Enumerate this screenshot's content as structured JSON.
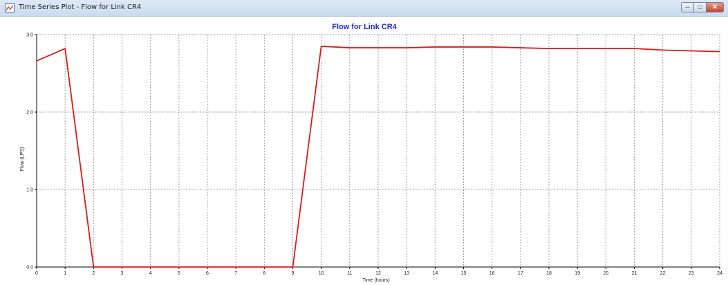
{
  "window": {
    "title": "Time Series Plot - Flow for Link CR4",
    "icon": "chart-icon",
    "controls": {
      "minimize_icon": "minimize-icon",
      "maximize_icon": "maximize-icon",
      "close_icon": "close-icon"
    }
  },
  "colors": {
    "title": "#1f2ad6",
    "series": "#e01818",
    "grid": "#a0a0a0"
  },
  "chart_data": {
    "type": "line",
    "title": "Flow for Link CR4",
    "xlabel": "Time (hours)",
    "ylabel": "Flow (LPS)",
    "xlim": [
      0,
      24
    ],
    "ylim": [
      0,
      3.0
    ],
    "xticks": [
      "0",
      "1",
      "2",
      "3",
      "4",
      "5",
      "6",
      "7",
      "8",
      "9",
      "10",
      "11",
      "12",
      "13",
      "14",
      "15",
      "16",
      "17",
      "18",
      "19",
      "20",
      "21",
      "22",
      "23",
      "24"
    ],
    "yticks": [
      "0.0",
      "1.0",
      "2.0",
      "3.0"
    ],
    "grid": true,
    "series": [
      {
        "x": [
          0,
          1,
          2,
          3,
          4,
          5,
          6,
          7,
          8,
          9,
          10,
          11,
          12,
          13,
          14,
          15,
          16,
          17,
          18,
          19,
          20,
          21,
          22,
          23,
          24
        ],
        "y": [
          2.66,
          2.82,
          0.0,
          0.0,
          0.0,
          0.0,
          0.0,
          0.0,
          0.0,
          0.0,
          2.85,
          2.83,
          2.83,
          2.83,
          2.84,
          2.84,
          2.84,
          2.83,
          2.82,
          2.82,
          2.82,
          2.82,
          2.8,
          2.79,
          2.78
        ]
      }
    ]
  }
}
